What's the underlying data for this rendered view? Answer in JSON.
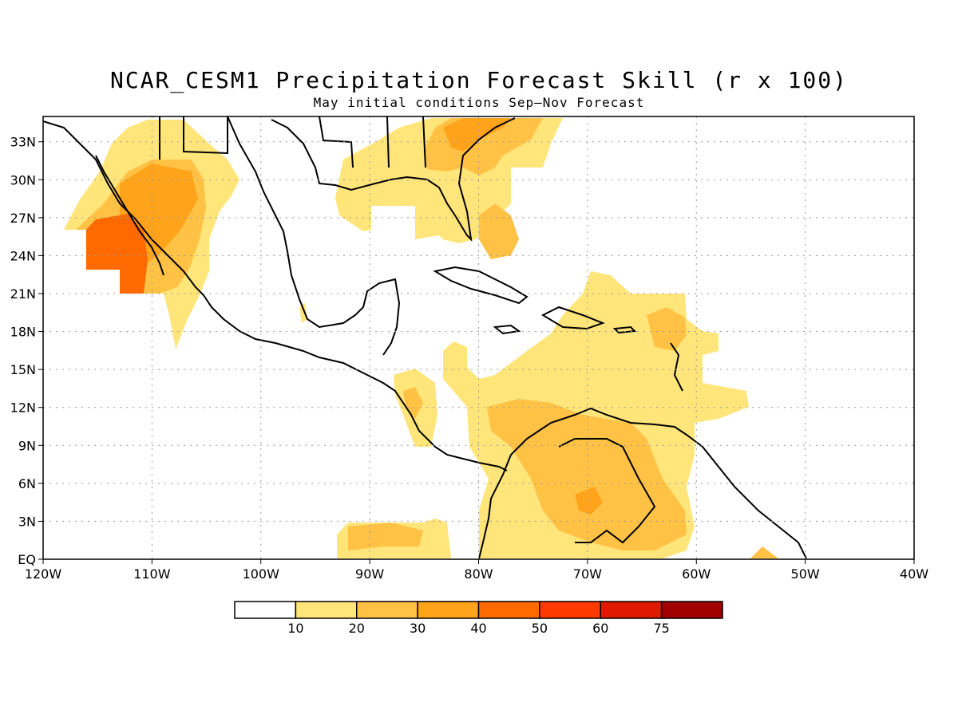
{
  "title": "NCAR_CESM1 Precipitation Forecast Skill (r x 100)",
  "subtitle": "May initial conditions  Sep–Nov Forecast",
  "map": {
    "lon_range": [
      -120,
      -40
    ],
    "lat_range": [
      0,
      35
    ],
    "grid": "dotted",
    "lat_ticks": [
      {
        "value": 33,
        "label": "33N"
      },
      {
        "value": 30,
        "label": "30N"
      },
      {
        "value": 27,
        "label": "27N"
      },
      {
        "value": 24,
        "label": "24N"
      },
      {
        "value": 21,
        "label": "21N"
      },
      {
        "value": 18,
        "label": "18N"
      },
      {
        "value": 15,
        "label": "15N"
      },
      {
        "value": 12,
        "label": "12N"
      },
      {
        "value": 9,
        "label": "9N"
      },
      {
        "value": 6,
        "label": "6N"
      },
      {
        "value": 3,
        "label": "3N"
      },
      {
        "value": 0,
        "label": "EQ"
      }
    ],
    "lon_ticks": [
      {
        "value": -120,
        "label": "120W"
      },
      {
        "value": -110,
        "label": "110W"
      },
      {
        "value": -100,
        "label": "100W"
      },
      {
        "value": -90,
        "label": "90W"
      },
      {
        "value": -80,
        "label": "80W"
      },
      {
        "value": -70,
        "label": "70W"
      },
      {
        "value": -60,
        "label": "60W"
      },
      {
        "value": -50,
        "label": "50W"
      },
      {
        "value": -40,
        "label": "40W"
      }
    ]
  },
  "colorbar": {
    "colors": [
      "#ffffff",
      "#ffe57a",
      "#ffc245",
      "#ffa31a",
      "#ff6a00",
      "#ff3a00",
      "#e01a00",
      "#a00000"
    ],
    "labels": [
      "10",
      "20",
      "30",
      "40",
      "50",
      "60",
      "75"
    ]
  }
}
